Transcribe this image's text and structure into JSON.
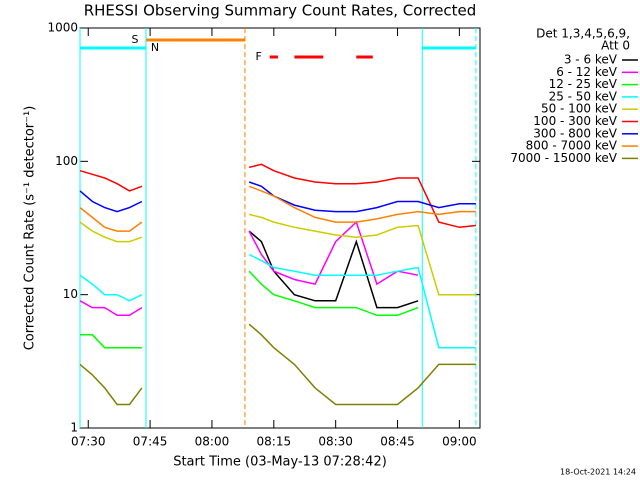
{
  "chart_data": {
    "type": "line",
    "title": "RHESSI Observing Summary Count Rates, Corrected",
    "x_label": "Start Time (03-May-13 07:28:42)",
    "y_label": "Corrected Count Rate (s⁻¹ detector⁻¹)",
    "legend_title": [
      "Det 1,3,4,5,6,9,",
      "Att 0"
    ],
    "footer": "18-Oct-2021 14:24",
    "log_y": true,
    "xlim": [
      "07:28",
      "09:05"
    ],
    "xticks": [
      "07:30",
      "07:45",
      "08:00",
      "08:15",
      "08:30",
      "08:45",
      "09:00"
    ],
    "ylim": [
      1,
      1000
    ],
    "yticks": [
      1,
      10,
      100,
      1000
    ],
    "x": [
      "07:28",
      "07:31",
      "07:34",
      "07:37",
      "07:40",
      "07:43",
      "07:45",
      "08:09",
      "08:12",
      "08:15",
      "08:20",
      "08:25",
      "08:30",
      "08:35",
      "08:40",
      "08:45",
      "08:50",
      "08:55",
      "09:00",
      "09:04"
    ],
    "series": [
      {
        "name": "3 - 6 keV",
        "color": "#000000",
        "values": [
          null,
          null,
          null,
          null,
          null,
          null,
          null,
          30,
          25,
          15,
          10,
          9,
          9,
          25,
          8,
          8,
          9,
          null,
          null,
          null
        ]
      },
      {
        "name": "6 - 12 keV",
        "color": "#ff00ff",
        "values": [
          9,
          8,
          8,
          7,
          7,
          8,
          null,
          30,
          20,
          15,
          13,
          12,
          25,
          35,
          12,
          15,
          14,
          null,
          null,
          null
        ]
      },
      {
        "name": "12 - 25 keV",
        "color": "#00ff00",
        "values": [
          5,
          5,
          4,
          4,
          4,
          4,
          null,
          15,
          12,
          10,
          9,
          8,
          8,
          8,
          7,
          7,
          8,
          null,
          null,
          null
        ]
      },
      {
        "name": "25 - 50 keV",
        "color": "#00ffff",
        "values": [
          14,
          12,
          10,
          10,
          9,
          10,
          null,
          20,
          18,
          16,
          15,
          14,
          14,
          14,
          14,
          15,
          16,
          4,
          4,
          4
        ]
      },
      {
        "name": "50 - 100 keV",
        "color": "#cccc00",
        "values": [
          35,
          30,
          27,
          25,
          25,
          27,
          null,
          40,
          38,
          35,
          32,
          30,
          28,
          27,
          28,
          32,
          33,
          10,
          10,
          10
        ]
      },
      {
        "name": "100 - 300 keV",
        "color": "#ff0000",
        "values": [
          85,
          80,
          75,
          68,
          60,
          65,
          null,
          90,
          95,
          85,
          75,
          70,
          68,
          68,
          70,
          75,
          75,
          35,
          32,
          33
        ]
      },
      {
        "name": "300 - 800 keV",
        "color": "#0000ff",
        "values": [
          60,
          50,
          45,
          42,
          45,
          50,
          null,
          70,
          65,
          55,
          47,
          43,
          42,
          42,
          45,
          50,
          50,
          45,
          48,
          48
        ]
      },
      {
        "name": "800 - 7000 keV",
        "color": "#ff8000",
        "values": [
          45,
          38,
          32,
          30,
          30,
          35,
          null,
          65,
          60,
          55,
          45,
          38,
          35,
          35,
          37,
          40,
          42,
          40,
          42,
          42
        ]
      },
      {
        "name": "7000 - 15000 keV",
        "color": "#808000",
        "values": [
          3,
          2.5,
          2,
          1.5,
          1.5,
          2,
          null,
          6,
          5,
          4,
          3,
          2,
          1.5,
          1.5,
          1.5,
          1.5,
          2,
          3,
          3,
          3
        ]
      }
    ],
    "flags": [
      {
        "label": "S",
        "color": "#ff8000",
        "spans": [
          [
            "07:44",
            "08:08"
          ]
        ]
      },
      {
        "label": "N",
        "color": "#00ffff",
        "spans": [
          [
            "07:28",
            "07:44"
          ],
          [
            "08:51",
            "09:04"
          ]
        ]
      },
      {
        "label": "F",
        "color": "#ff0000",
        "spans": [
          [
            "08:14",
            "08:16"
          ],
          [
            "08:20",
            "08:27"
          ],
          [
            "08:35",
            "08:39"
          ]
        ]
      }
    ]
  }
}
